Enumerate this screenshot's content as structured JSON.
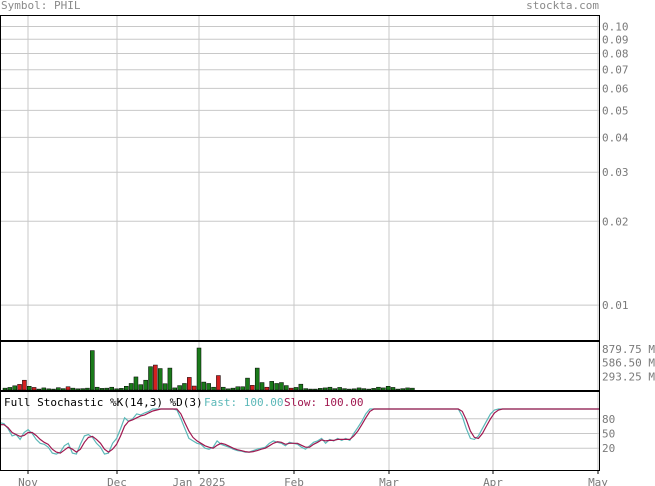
{
  "header": {
    "symbol_label": "Symbol: PHIL",
    "site_label": "stockta.com"
  },
  "colors": {
    "grid": "#c8c8c8",
    "frame": "#000000",
    "volume_up": "#1a7a1a",
    "volume_down": "#d42020",
    "fast_line": "#5bb8b8",
    "slow_line": "#a01850",
    "axis_text": "#7a7a7a"
  },
  "chart_data": [
    {
      "type": "line",
      "title": "",
      "scale": "log",
      "y_ticks": [
        "0.10",
        "0.09",
        "0.08",
        "0.07",
        "0.06",
        "0.05",
        "0.04",
        "0.03",
        "0.02",
        "0.01"
      ],
      "ylim": [
        0.0075,
        0.11
      ],
      "series": []
    },
    {
      "type": "bar",
      "y_ticks": [
        "879.75 M",
        "586.50 M",
        "293.25 M"
      ],
      "ylim": [
        0,
        1050
      ],
      "unit": "M",
      "bars": [
        {
          "v": 40,
          "up": true
        },
        {
          "v": 55,
          "up": true
        },
        {
          "v": 90,
          "up": true
        },
        {
          "v": 120,
          "up": false
        },
        {
          "v": 210,
          "up": false
        },
        {
          "v": 80,
          "up": true
        },
        {
          "v": 55,
          "up": false
        },
        {
          "v": 20,
          "up": true
        },
        {
          "v": 45,
          "up": true
        },
        {
          "v": 25,
          "up": true
        },
        {
          "v": 20,
          "up": true
        },
        {
          "v": 50,
          "up": true
        },
        {
          "v": 30,
          "up": true
        },
        {
          "v": 70,
          "up": false
        },
        {
          "v": 40,
          "up": true
        },
        {
          "v": 25,
          "up": true
        },
        {
          "v": 30,
          "up": true
        },
        {
          "v": 40,
          "up": true
        },
        {
          "v": 845,
          "up": true
        },
        {
          "v": 60,
          "up": true
        },
        {
          "v": 35,
          "up": true
        },
        {
          "v": 40,
          "up": true
        },
        {
          "v": 60,
          "up": true
        },
        {
          "v": 25,
          "up": true
        },
        {
          "v": 35,
          "up": true
        },
        {
          "v": 80,
          "up": true
        },
        {
          "v": 140,
          "up": true
        },
        {
          "v": 280,
          "up": true
        },
        {
          "v": 115,
          "up": true
        },
        {
          "v": 210,
          "up": true
        },
        {
          "v": 500,
          "up": true
        },
        {
          "v": 535,
          "up": false
        },
        {
          "v": 460,
          "up": true
        },
        {
          "v": 135,
          "up": true
        },
        {
          "v": 470,
          "up": true
        },
        {
          "v": 45,
          "up": true
        },
        {
          "v": 95,
          "up": true
        },
        {
          "v": 140,
          "up": true
        },
        {
          "v": 270,
          "up": false
        },
        {
          "v": 85,
          "up": false
        },
        {
          "v": 900,
          "up": true
        },
        {
          "v": 170,
          "up": true
        },
        {
          "v": 140,
          "up": true
        },
        {
          "v": 60,
          "up": true
        },
        {
          "v": 310,
          "up": false
        },
        {
          "v": 60,
          "up": true
        },
        {
          "v": 25,
          "up": true
        },
        {
          "v": 40,
          "up": true
        },
        {
          "v": 70,
          "up": true
        },
        {
          "v": 70,
          "up": true
        },
        {
          "v": 255,
          "up": true
        },
        {
          "v": 100,
          "up": false
        },
        {
          "v": 470,
          "up": true
        },
        {
          "v": 160,
          "up": true
        },
        {
          "v": 60,
          "up": false
        },
        {
          "v": 185,
          "up": true
        },
        {
          "v": 140,
          "up": true
        },
        {
          "v": 160,
          "up": true
        },
        {
          "v": 95,
          "up": true
        },
        {
          "v": 40,
          "up": false
        },
        {
          "v": 55,
          "up": true
        },
        {
          "v": 125,
          "up": true
        },
        {
          "v": 30,
          "up": true
        },
        {
          "v": 20,
          "up": true
        },
        {
          "v": 20,
          "up": true
        },
        {
          "v": 35,
          "up": true
        },
        {
          "v": 45,
          "up": true
        },
        {
          "v": 60,
          "up": true
        },
        {
          "v": 30,
          "up": true
        },
        {
          "v": 55,
          "up": true
        },
        {
          "v": 30,
          "up": true
        },
        {
          "v": 20,
          "up": true
        },
        {
          "v": 25,
          "up": true
        },
        {
          "v": 45,
          "up": true
        },
        {
          "v": 30,
          "up": true
        },
        {
          "v": 20,
          "up": true
        },
        {
          "v": 35,
          "up": true
        },
        {
          "v": 60,
          "up": true
        },
        {
          "v": 45,
          "up": true
        },
        {
          "v": 80,
          "up": true
        },
        {
          "v": 55,
          "up": true
        },
        {
          "v": 20,
          "up": true
        },
        {
          "v": 30,
          "up": true
        },
        {
          "v": 45,
          "up": true
        },
        {
          "v": 40,
          "up": true
        }
      ]
    },
    {
      "type": "line",
      "title": "Full Stochastic %K(14,3) %D(3)",
      "fast_label": "Fast: 100.00",
      "slow_label": "Slow: 100.00",
      "y_ticks": [
        "80",
        "50",
        "20"
      ],
      "ylim": [
        0,
        100
      ],
      "series": [
        {
          "name": "Fast",
          "values": [
            72,
            70,
            60,
            45,
            48,
            38,
            52,
            58,
            50,
            38,
            30,
            28,
            22,
            10,
            8,
            12,
            25,
            30,
            10,
            8,
            28,
            45,
            48,
            42,
            30,
            22,
            8,
            10,
            30,
            40,
            60,
            82,
            75,
            80,
            90,
            88,
            92,
            95,
            100,
            100,
            100,
            100,
            100,
            100,
            98,
            80,
            60,
            40,
            35,
            30,
            28,
            20,
            18,
            22,
            35,
            28,
            25,
            22,
            18,
            15,
            14,
            12,
            12,
            15,
            18,
            20,
            22,
            30,
            35,
            32,
            30,
            25,
            32,
            30,
            28,
            22,
            18,
            25,
            32,
            35,
            40,
            30,
            38,
            35,
            40,
            36,
            40,
            36,
            50,
            62,
            75,
            90,
            100,
            100,
            100,
            100,
            100,
            100,
            100,
            100,
            100,
            100,
            100,
            100,
            100,
            100,
            100,
            100,
            100,
            100,
            100,
            100,
            100,
            100,
            100,
            85,
            60,
            40,
            38,
            45,
            60,
            75,
            90,
            98,
            100,
            100,
            100,
            100,
            100,
            100,
            100,
            100,
            100,
            100,
            100,
            100,
            100,
            100,
            100,
            100,
            100,
            100,
            100,
            100,
            100,
            100,
            100,
            100,
            100,
            100
          ]
        },
        {
          "name": "Slow",
          "values": [
            68,
            68,
            62,
            52,
            48,
            44,
            46,
            52,
            52,
            46,
            38,
            32,
            28,
            18,
            12,
            10,
            16,
            22,
            18,
            12,
            18,
            32,
            42,
            44,
            38,
            30,
            18,
            12,
            18,
            28,
            45,
            65,
            75,
            78,
            82,
            86,
            88,
            92,
            96,
            98,
            100,
            100,
            100,
            100,
            100,
            90,
            72,
            55,
            42,
            35,
            30,
            25,
            22,
            20,
            26,
            30,
            28,
            24,
            20,
            17,
            15,
            13,
            12,
            13,
            15,
            18,
            20,
            25,
            30,
            33,
            32,
            28,
            30,
            30,
            30,
            26,
            22,
            22,
            28,
            32,
            37,
            35,
            36,
            36,
            38,
            38,
            38,
            38,
            45,
            55,
            68,
            82,
            95,
            100,
            100,
            100,
            100,
            100,
            100,
            100,
            100,
            100,
            100,
            100,
            100,
            100,
            100,
            100,
            100,
            100,
            100,
            100,
            100,
            100,
            100,
            95,
            78,
            55,
            42,
            40,
            50,
            65,
            80,
            92,
            98,
            100,
            100,
            100,
            100,
            100,
            100,
            100,
            100,
            100,
            100,
            100,
            100,
            100,
            100,
            100,
            100,
            100,
            100,
            100,
            100,
            100,
            100,
            100,
            100,
            100
          ]
        }
      ]
    }
  ],
  "x_axis": {
    "ticks": [
      "Nov",
      "Dec",
      "Jan 2025",
      "Feb",
      "Mar",
      "Apr",
      "May"
    ]
  }
}
